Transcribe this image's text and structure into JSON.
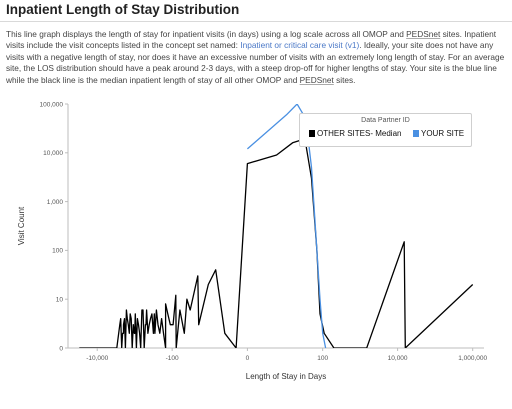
{
  "page": {
    "title": "Inpatient Length of Stay Distribution",
    "description_before_link": "This line graph displays the length of stay for inpatient visits (in days) using a log scale across all OMOP and ",
    "pedsnet_1": "PEDSnet",
    "description_mid": " sites.  Inpatient visits include the visit concepts listed in the concept set named: ",
    "concept_link": "Inpatient or critical care visit (v1)",
    "description_after_link": ". Ideally, your site does not have any visits with a negative length of stay, nor does it have an excessive number of visits with an extremely long length of stay. For an average site, the LOS distribution should have a peak around 2-3 days, with a steep drop-off for higher lengths of stay. Your site is the blue line while the black line is the median inpatient length of stay of all other OMOP and ",
    "pedsnet_2": "PEDSnet",
    "description_end": " sites."
  },
  "chart_data": {
    "type": "line",
    "xlabel": "Length of Stay in Days",
    "ylabel": "Visit Count",
    "x_scale": "symlog",
    "y_scale": "log",
    "x_ticks": [
      "-10,000",
      "-100",
      "0",
      "100",
      "10,000",
      "1,000,000"
    ],
    "y_ticks": [
      "0",
      "10",
      "100",
      "1,000",
      "10,000",
      "100,000"
    ],
    "ylim": [
      0,
      100000
    ],
    "legend": {
      "title": "Data Partner ID",
      "placement": "top-right",
      "entries": [
        "OTHER SITES- Median",
        "YOUR SITE"
      ]
    },
    "series": [
      {
        "name": "OTHER SITES- Median",
        "color": "#000000",
        "points": [
          [
            -30000,
            1
          ],
          [
            -3000,
            1
          ],
          [
            -2000,
            2
          ],
          [
            -1000,
            2
          ],
          [
            -500,
            3
          ],
          [
            -300,
            5
          ],
          [
            -150,
            8
          ],
          [
            -80,
            12
          ],
          [
            -40,
            10
          ],
          [
            -20,
            30
          ],
          [
            -10,
            20
          ],
          [
            -6,
            40
          ],
          [
            -3,
            2
          ],
          [
            -1,
            1
          ],
          [
            0,
            6000
          ],
          [
            5,
            9000
          ],
          [
            15,
            16000
          ],
          [
            25,
            18000
          ],
          [
            35,
            15000
          ],
          [
            50,
            3000
          ],
          [
            70,
            100
          ],
          [
            85,
            5
          ],
          [
            110,
            2
          ],
          [
            200,
            1
          ],
          [
            1500,
            1
          ],
          [
            15000,
            150
          ],
          [
            16000,
            1
          ],
          [
            1000000,
            20
          ]
        ]
      },
      {
        "name": "YOUR SITE",
        "color": "#4a90e2",
        "points": [
          [
            0,
            12000
          ],
          [
            10,
            60000
          ],
          [
            20,
            100000
          ],
          [
            35,
            50000
          ],
          [
            50,
            5000
          ],
          [
            70,
            100
          ],
          [
            85,
            10
          ],
          [
            100,
            2
          ],
          [
            120,
            1
          ]
        ]
      }
    ]
  }
}
